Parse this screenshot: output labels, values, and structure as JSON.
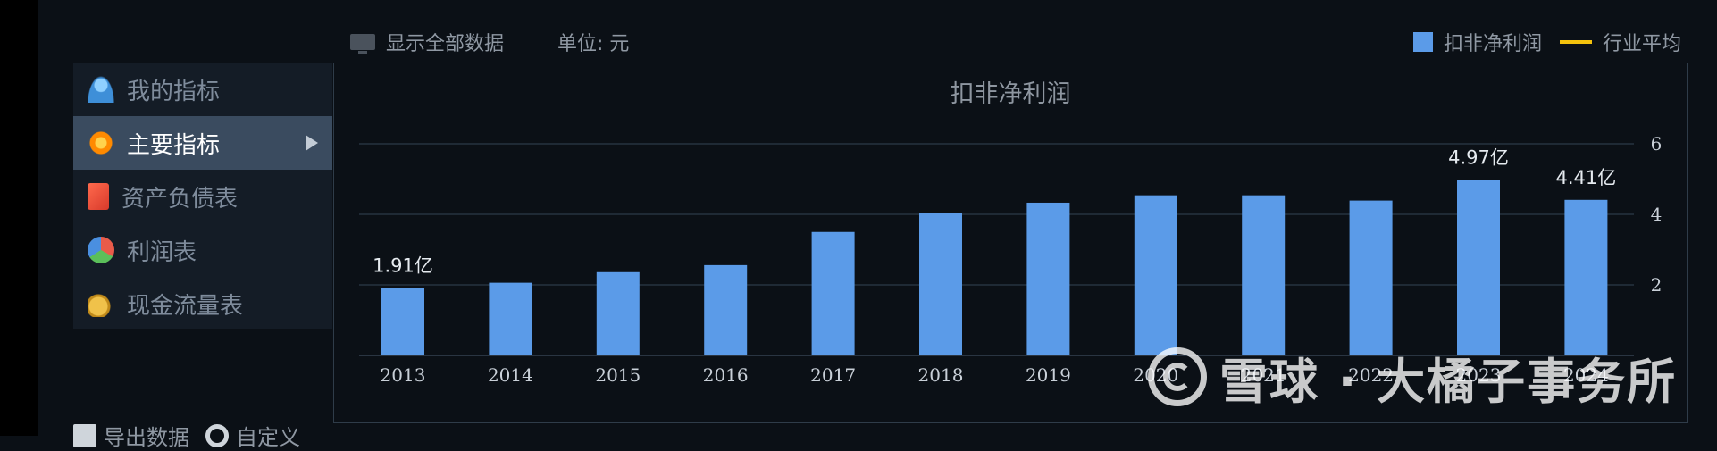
{
  "toolbar": {
    "show_all_label": "显示全部数据",
    "unit_label": "单位: 元"
  },
  "legend": {
    "bar_series_label": "扣非净利润",
    "line_series_label": "行业平均"
  },
  "sidebar": {
    "items": [
      {
        "label": "我的指标",
        "icon": "user-icon"
      },
      {
        "label": "主要指标",
        "icon": "star-icon",
        "active": true
      },
      {
        "label": "资产负债表",
        "icon": "document-icon"
      },
      {
        "label": "利润表",
        "icon": "pie-icon"
      },
      {
        "label": "现金流量表",
        "icon": "coins-icon"
      }
    ]
  },
  "bottom_tools": {
    "export_label": "导出数据",
    "custom_label": "自定义"
  },
  "watermark": {
    "text": "雪球 · 大橘子事务所"
  },
  "colors": {
    "bar": "#5b9be8",
    "industry_line": "#f4c20d",
    "grid": "#1f2a35",
    "axis_text": "#c9d0d8"
  },
  "chart_data": {
    "type": "bar",
    "title": "扣非净利润",
    "categories": [
      "2013",
      "2014",
      "2015",
      "2016",
      "2017",
      "2018",
      "2019",
      "2020",
      "2021",
      "2022",
      "2023",
      "2024"
    ],
    "series": [
      {
        "name": "扣非净利润",
        "values": [
          1.91,
          2.06,
          2.36,
          2.56,
          3.5,
          4.05,
          4.33,
          4.54,
          4.54,
          4.39,
          4.97,
          4.41
        ]
      }
    ],
    "data_labels": {
      "0": "1.91亿",
      "10": "4.97亿",
      "11": "4.41亿"
    },
    "y_ticks": [
      "2",
      "4",
      "6"
    ],
    "ylim": [
      0,
      6
    ],
    "y_axis_position": "right",
    "grid": true,
    "legend_position": "top-right"
  }
}
